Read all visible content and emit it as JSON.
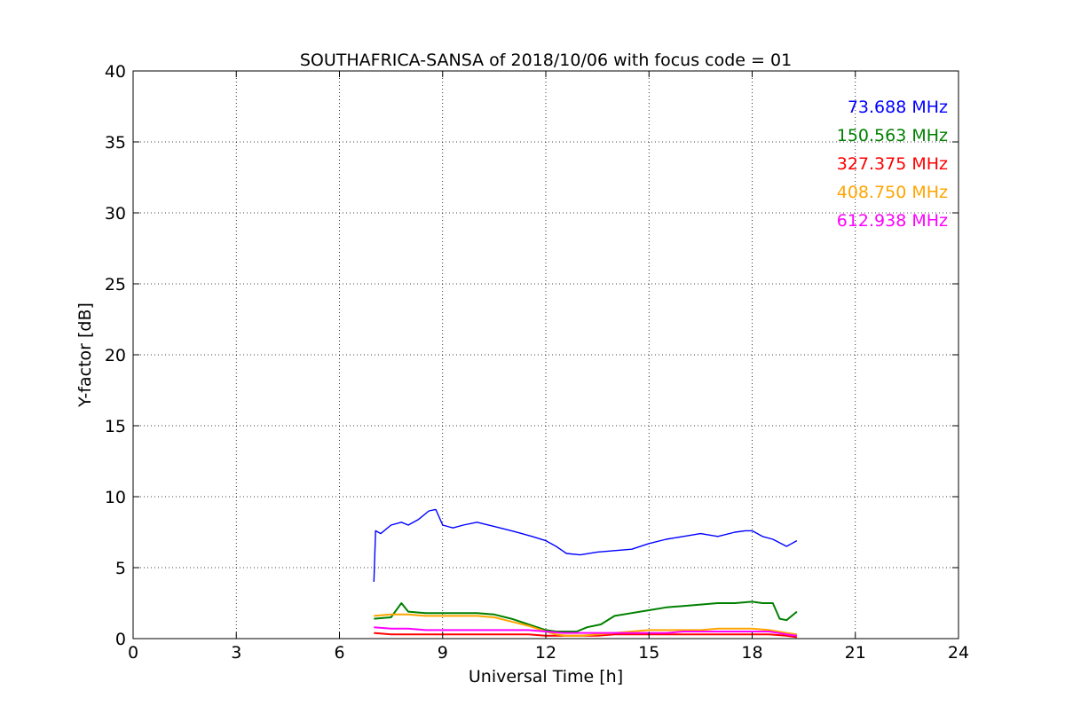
{
  "chart_data": {
    "type": "line",
    "title": "SOUTHAFRICA-SANSA of 2018/10/06 with focus code = 01",
    "xlabel": "Universal Time [h]",
    "ylabel": "Y-factor [dB]",
    "xlim": [
      0,
      24
    ],
    "ylim": [
      0,
      40
    ],
    "xticks": [
      0,
      3,
      6,
      9,
      12,
      15,
      18,
      21,
      24
    ],
    "yticks": [
      0,
      5,
      10,
      15,
      20,
      25,
      30,
      35,
      40
    ],
    "xtick_labels": [
      "0",
      "3",
      "6",
      "9",
      "12",
      "15",
      "18",
      "21",
      "24"
    ],
    "ytick_labels": [
      "0",
      "5",
      "10",
      "15",
      "20",
      "25",
      "30",
      "35",
      "40"
    ],
    "grid": true,
    "legend_position": "top-right",
    "series": [
      {
        "name": "73.688 MHz",
        "color": "#0000ff",
        "x": [
          7.0,
          7.05,
          7.2,
          7.5,
          7.8,
          8.0,
          8.3,
          8.6,
          8.8,
          9.0,
          9.3,
          9.6,
          10.0,
          10.5,
          11.0,
          11.3,
          11.6,
          12.0,
          12.3,
          12.6,
          13.0,
          13.5,
          14.0,
          14.5,
          15.0,
          15.5,
          16.0,
          16.5,
          17.0,
          17.5,
          17.8,
          18.0,
          18.3,
          18.6,
          19.0,
          19.3
        ],
        "y": [
          4.0,
          7.6,
          7.4,
          8.0,
          8.2,
          8.0,
          8.4,
          9.0,
          9.1,
          8.0,
          7.8,
          8.0,
          8.2,
          7.9,
          7.6,
          7.4,
          7.2,
          6.9,
          6.5,
          6.0,
          5.9,
          6.1,
          6.2,
          6.3,
          6.7,
          7.0,
          7.2,
          7.4,
          7.2,
          7.5,
          7.6,
          7.6,
          7.2,
          7.0,
          6.5,
          6.9
        ]
      },
      {
        "name": "150.563 MHz",
        "color": "#008000",
        "x": [
          7.0,
          7.5,
          7.8,
          8.0,
          8.5,
          9.0,
          9.5,
          10.0,
          10.5,
          11.0,
          11.5,
          12.0,
          12.3,
          12.6,
          12.9,
          13.2,
          13.6,
          14.0,
          14.5,
          15.0,
          15.5,
          16.0,
          16.5,
          17.0,
          17.5,
          18.0,
          18.3,
          18.6,
          18.8,
          19.0,
          19.3
        ],
        "y": [
          1.4,
          1.5,
          2.5,
          1.9,
          1.8,
          1.8,
          1.8,
          1.8,
          1.7,
          1.4,
          1.0,
          0.6,
          0.5,
          0.5,
          0.5,
          0.8,
          1.0,
          1.6,
          1.8,
          2.0,
          2.2,
          2.3,
          2.4,
          2.5,
          2.5,
          2.6,
          2.5,
          2.5,
          1.4,
          1.3,
          1.9
        ]
      },
      {
        "name": "327.375 MHz",
        "color": "#ff0000",
        "x": [
          7.0,
          7.5,
          8.0,
          8.5,
          9.0,
          9.5,
          10.0,
          10.5,
          11.0,
          11.5,
          12.0,
          12.5,
          13.0,
          13.5,
          14.0,
          14.5,
          15.0,
          15.5,
          16.0,
          16.5,
          17.0,
          17.5,
          18.0,
          18.5,
          19.0,
          19.3
        ],
        "y": [
          0.4,
          0.3,
          0.3,
          0.3,
          0.3,
          0.3,
          0.3,
          0.3,
          0.3,
          0.3,
          0.2,
          0.2,
          0.2,
          0.2,
          0.3,
          0.3,
          0.3,
          0.3,
          0.3,
          0.3,
          0.3,
          0.3,
          0.3,
          0.3,
          0.2,
          0.1
        ]
      },
      {
        "name": "408.750 MHz",
        "color": "#ffa500",
        "x": [
          7.0,
          7.5,
          8.0,
          8.5,
          9.0,
          9.5,
          10.0,
          10.5,
          11.0,
          11.5,
          12.0,
          12.3,
          12.6,
          13.0,
          13.5,
          14.0,
          14.5,
          15.0,
          15.5,
          16.0,
          16.5,
          17.0,
          17.5,
          18.0,
          18.5,
          19.0,
          19.3
        ],
        "y": [
          1.6,
          1.7,
          1.7,
          1.6,
          1.6,
          1.6,
          1.6,
          1.5,
          1.2,
          0.9,
          0.5,
          0.3,
          0.2,
          0.2,
          0.3,
          0.4,
          0.5,
          0.6,
          0.6,
          0.6,
          0.6,
          0.7,
          0.7,
          0.7,
          0.6,
          0.4,
          0.3
        ]
      },
      {
        "name": "612.938 MHz",
        "color": "#ff00ff",
        "x": [
          7.0,
          7.5,
          8.0,
          8.5,
          9.0,
          9.5,
          10.0,
          10.5,
          11.0,
          11.5,
          12.0,
          12.5,
          13.0,
          13.5,
          14.0,
          14.5,
          15.0,
          15.5,
          16.0,
          16.5,
          17.0,
          17.5,
          18.0,
          18.5,
          19.0,
          19.3
        ],
        "y": [
          0.8,
          0.7,
          0.7,
          0.6,
          0.6,
          0.6,
          0.6,
          0.6,
          0.6,
          0.6,
          0.5,
          0.4,
          0.4,
          0.4,
          0.4,
          0.4,
          0.4,
          0.4,
          0.5,
          0.5,
          0.5,
          0.5,
          0.5,
          0.5,
          0.3,
          0.2
        ]
      }
    ]
  }
}
